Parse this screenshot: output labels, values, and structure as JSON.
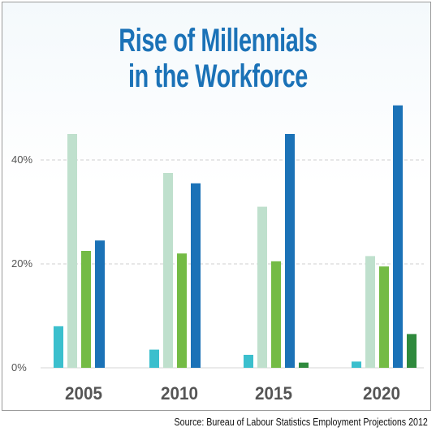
{
  "title_line1": "Rise of Millennials",
  "title_line2": "in the Workforce",
  "source": "Source: Bureau of Labour Statistics Employment Projections 2012",
  "chart_data": {
    "type": "bar",
    "title": "Rise of Millennials in the Workforce",
    "categories": [
      "2005",
      "2010",
      "2015",
      "2020"
    ],
    "yticks": [
      "0%",
      "20%",
      "40%"
    ],
    "ylim": [
      0,
      52
    ],
    "grid": true,
    "legend": "none",
    "series": [
      {
        "color": "#3bbfcd",
        "values": [
          8,
          3.5,
          2.5,
          1.2
        ]
      },
      {
        "color": "#bfe0cd",
        "values": [
          45,
          37.5,
          31,
          21.5
        ]
      },
      {
        "color": "#74bb45",
        "values": [
          22.5,
          22,
          20.5,
          19.5
        ]
      },
      {
        "color": "#1b72b7",
        "values": [
          24.5,
          35.5,
          45,
          50.5
        ]
      },
      {
        "color": "#2f8a3d",
        "values": [
          0,
          0,
          1,
          6.5
        ]
      }
    ]
  }
}
